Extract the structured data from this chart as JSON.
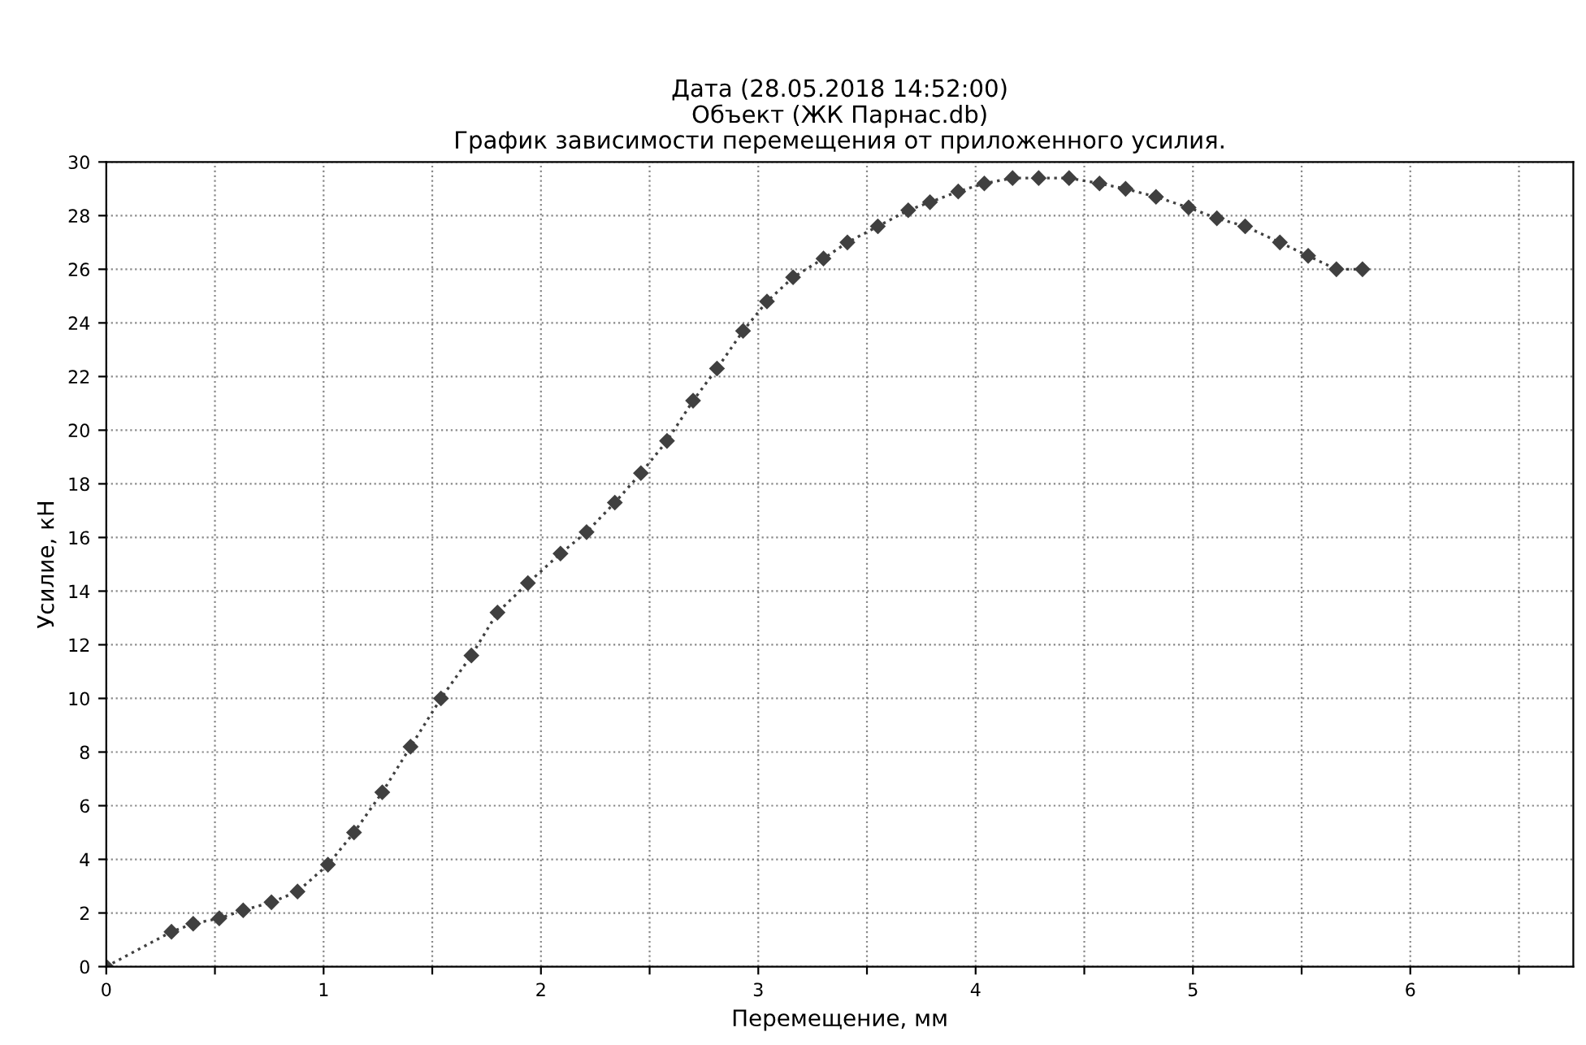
{
  "chart_data": {
    "type": "line",
    "title": "Дата (28.05.2018 14:52:00)\nОбъект (ЖК Парнас.db)\nГрафик зависимости перемещения от приложенного усилия.",
    "xlabel": "Перемещение, мм",
    "ylabel": "Усилие, кН",
    "series": [
      {
        "color": "#404040",
        "x": [
          0,
          0.3,
          0.4,
          0.52,
          0.63,
          0.76,
          0.88,
          1.02,
          1.14,
          1.27,
          1.4,
          1.54,
          1.68,
          1.8,
          1.94,
          2.09,
          2.21,
          2.34,
          2.46,
          2.58,
          2.7,
          2.81,
          2.93,
          3.04,
          3.16,
          3.3,
          3.41,
          3.55,
          3.69,
          3.79,
          3.92,
          4.04,
          4.17,
          4.29,
          4.43,
          4.57,
          4.69,
          4.83,
          4.98,
          5.11,
          5.24,
          5.4,
          5.53,
          5.66,
          5.78
        ],
        "values": [
          0,
          1.3,
          1.6,
          1.8,
          2.1,
          2.4,
          2.8,
          3.8,
          5.0,
          6.5,
          8.2,
          10.0,
          11.6,
          13.2,
          14.3,
          15.4,
          16.2,
          17.3,
          18.4,
          19.6,
          21.1,
          22.3,
          23.7,
          24.8,
          25.7,
          26.4,
          27.0,
          27.6,
          28.2,
          28.5,
          28.9,
          29.2,
          29.4,
          29.4,
          29.4,
          29.2,
          29.0,
          28.7,
          28.3,
          27.9,
          27.6,
          27.0,
          26.5,
          26.0,
          26.0
        ]
      }
    ],
    "xlim": [
      0,
      6.75
    ],
    "xticks": [
      0,
      {
        "value": 0.5,
        "label": null
      },
      1,
      {
        "value": 1.5,
        "label": null
      },
      2,
      {
        "value": 2.5,
        "label": null
      },
      3,
      {
        "value": 3.5,
        "label": null
      },
      4,
      {
        "value": 4.5,
        "label": null
      },
      5,
      {
        "value": 5.5,
        "label": null
      },
      6,
      {
        "value": 6.5,
        "label": null
      }
    ],
    "ylim": [
      0,
      30
    ],
    "yticks": [
      0,
      2,
      4,
      6,
      8,
      10,
      12,
      14,
      16,
      18,
      20,
      22,
      24,
      26,
      28,
      30
    ],
    "grid": true,
    "marker": "diamond",
    "line_style": "dotted"
  }
}
